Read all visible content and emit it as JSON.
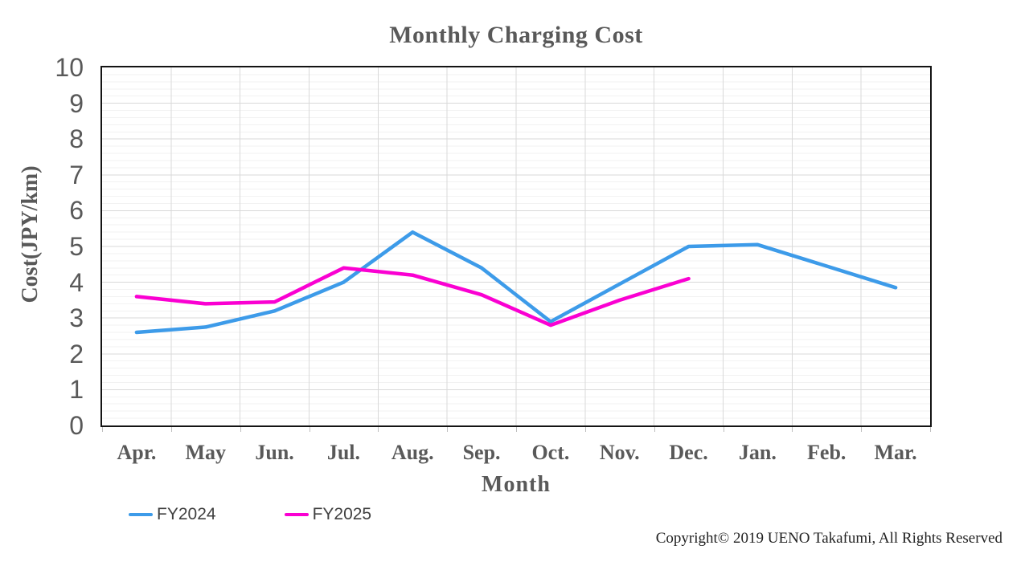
{
  "chart_data": {
    "type": "line",
    "title": "Monthly Charging Cost",
    "xlabel": "Month",
    "ylabel": "Cost(JPY/km)",
    "categories": [
      "Apr.",
      "May",
      "Jun.",
      "Jul.",
      "Aug.",
      "Sep.",
      "Oct.",
      "Nov.",
      "Dec.",
      "Jan.",
      "Feb.",
      "Mar."
    ],
    "series": [
      {
        "name": "FY2024",
        "color": "#3D9BE9",
        "values": [
          2.6,
          2.75,
          3.2,
          4.0,
          5.4,
          4.4,
          2.9,
          3.95,
          5.0,
          5.05,
          4.45,
          3.85
        ]
      },
      {
        "name": "FY2025",
        "color": "#FA00D2",
        "values": [
          3.6,
          3.4,
          3.45,
          4.4,
          4.2,
          3.65,
          2.8,
          3.5,
          4.1
        ]
      }
    ],
    "ylim": [
      0,
      10
    ],
    "y_ticks": [
      0,
      1,
      2,
      3,
      4,
      5,
      6,
      7,
      8,
      9,
      10
    ],
    "y_major_step": 1,
    "y_minor_step": 0.2,
    "grid": true,
    "legend_position": "bottom-left"
  },
  "footer": {
    "copyright": "Copyright© 2019 UENO Takafumi, All Rights Reserved"
  },
  "style": {
    "label_color": "#595959",
    "legend_text_color": "#404040",
    "grid_major": "#D9D9D9",
    "grid_minor": "#F2F2F2",
    "axis_color": "#141414",
    "tick_color": "#BFBFBF",
    "background": "#FFFFFF"
  }
}
